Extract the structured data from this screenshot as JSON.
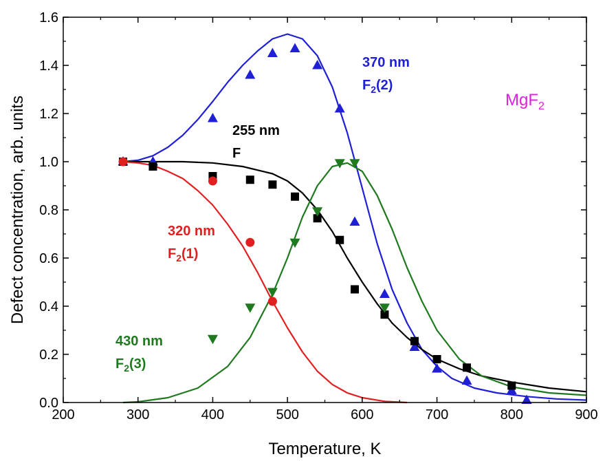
{
  "chart_data": {
    "type": "scatter",
    "title": "",
    "xlabel": "Temperature, K",
    "ylabel": "Defect concentration, arb. units",
    "xlim": [
      200,
      900
    ],
    "ylim": [
      0.0,
      1.6
    ],
    "xticks": [
      200,
      300,
      400,
      500,
      600,
      700,
      800,
      900
    ],
    "yticks": [
      0.0,
      0.2,
      0.4,
      0.6,
      0.8,
      1.0,
      1.2,
      1.4,
      1.6
    ],
    "xtick_labels": [
      "200",
      "300",
      "400",
      "500",
      "600",
      "700",
      "800",
      "900"
    ],
    "ytick_labels": [
      "0.0",
      "0.2",
      "0.4",
      "0.6",
      "0.8",
      "1.0",
      "1.2",
      "1.4",
      "1.6"
    ],
    "grid": false,
    "material_label": {
      "base": "MgF",
      "sub": "2",
      "color": "#e020e0"
    },
    "series": [
      {
        "id": "F2_2",
        "marker": "triangle-up",
        "color": "#1f1fd6",
        "points": [
          [
            280,
            1.0
          ],
          [
            320,
            1.0
          ],
          [
            400,
            1.18
          ],
          [
            450,
            1.36
          ],
          [
            480,
            1.45
          ],
          [
            510,
            1.47
          ],
          [
            540,
            1.4
          ],
          [
            570,
            1.22
          ],
          [
            590,
            0.75
          ],
          [
            630,
            0.45
          ],
          [
            670,
            0.23
          ],
          [
            700,
            0.14
          ],
          [
            740,
            0.09
          ],
          [
            800,
            0.05
          ],
          [
            820,
            0.01
          ]
        ],
        "fit": [
          [
            280,
            1.0
          ],
          [
            300,
            1.006
          ],
          [
            320,
            1.025
          ],
          [
            340,
            1.06
          ],
          [
            360,
            1.11
          ],
          [
            380,
            1.175
          ],
          [
            400,
            1.25
          ],
          [
            420,
            1.33
          ],
          [
            440,
            1.4
          ],
          [
            460,
            1.46
          ],
          [
            480,
            1.51
          ],
          [
            500,
            1.53
          ],
          [
            520,
            1.51
          ],
          [
            540,
            1.44
          ],
          [
            560,
            1.31
          ],
          [
            580,
            1.12
          ],
          [
            600,
            0.89
          ],
          [
            620,
            0.66
          ],
          [
            640,
            0.47
          ],
          [
            660,
            0.33
          ],
          [
            680,
            0.22
          ],
          [
            700,
            0.15
          ],
          [
            720,
            0.1
          ],
          [
            750,
            0.06
          ],
          [
            780,
            0.04
          ],
          [
            820,
            0.025
          ],
          [
            860,
            0.015
          ],
          [
            900,
            0.01
          ]
        ],
        "label_lines": [
          {
            "base": "370 nm",
            "sub": ""
          },
          {
            "base": "F",
            "sub": "2",
            "tail": "(2)"
          }
        ]
      },
      {
        "id": "F",
        "marker": "square",
        "color": "#000000",
        "points": [
          [
            280,
            1.0
          ],
          [
            320,
            0.98
          ],
          [
            400,
            0.94
          ],
          [
            450,
            0.925
          ],
          [
            480,
            0.905
          ],
          [
            510,
            0.855
          ],
          [
            540,
            0.765
          ],
          [
            570,
            0.675
          ],
          [
            590,
            0.47
          ],
          [
            630,
            0.365
          ],
          [
            670,
            0.255
          ],
          [
            700,
            0.18
          ],
          [
            740,
            0.145
          ],
          [
            800,
            0.07
          ]
        ],
        "fit": [
          [
            280,
            1.0
          ],
          [
            320,
            1.0
          ],
          [
            360,
            1.0
          ],
          [
            400,
            0.995
          ],
          [
            440,
            0.98
          ],
          [
            480,
            0.95
          ],
          [
            500,
            0.92
          ],
          [
            520,
            0.87
          ],
          [
            540,
            0.8
          ],
          [
            560,
            0.71
          ],
          [
            580,
            0.6
          ],
          [
            600,
            0.5
          ],
          [
            620,
            0.41
          ],
          [
            640,
            0.33
          ],
          [
            660,
            0.27
          ],
          [
            680,
            0.22
          ],
          [
            700,
            0.18
          ],
          [
            730,
            0.14
          ],
          [
            760,
            0.11
          ],
          [
            800,
            0.085
          ],
          [
            850,
            0.06
          ],
          [
            900,
            0.045
          ]
        ],
        "label_lines": [
          {
            "base": "255 nm",
            "sub": ""
          },
          {
            "base": "F",
            "sub": ""
          }
        ]
      },
      {
        "id": "F2_1",
        "marker": "circle",
        "color": "#e02020",
        "points": [
          [
            280,
            1.0
          ],
          [
            400,
            0.92
          ],
          [
            450,
            0.665
          ],
          [
            480,
            0.42
          ]
        ],
        "fit": [
          [
            280,
            1.0
          ],
          [
            300,
            0.995
          ],
          [
            320,
            0.985
          ],
          [
            340,
            0.96
          ],
          [
            360,
            0.93
          ],
          [
            380,
            0.88
          ],
          [
            400,
            0.82
          ],
          [
            420,
            0.74
          ],
          [
            440,
            0.65
          ],
          [
            460,
            0.54
          ],
          [
            480,
            0.42
          ],
          [
            500,
            0.31
          ],
          [
            520,
            0.21
          ],
          [
            540,
            0.13
          ],
          [
            560,
            0.075
          ],
          [
            580,
            0.04
          ],
          [
            600,
            0.02
          ],
          [
            630,
            0.005
          ],
          [
            660,
            0.0
          ]
        ],
        "label_lines": [
          {
            "base": "320 nm",
            "sub": ""
          },
          {
            "base": "F",
            "sub": "2",
            "tail": "(1)"
          }
        ]
      },
      {
        "id": "F2_3",
        "marker": "triangle-down",
        "color": "#1f7a1f",
        "points": [
          [
            400,
            0.265
          ],
          [
            450,
            0.395
          ],
          [
            480,
            0.46
          ],
          [
            510,
            0.665
          ],
          [
            540,
            0.795
          ],
          [
            570,
            0.995
          ],
          [
            590,
            0.995
          ],
          [
            630,
            0.395
          ]
        ],
        "fit": [
          [
            280,
            0.0
          ],
          [
            300,
            0.003
          ],
          [
            340,
            0.02
          ],
          [
            380,
            0.06
          ],
          [
            420,
            0.15
          ],
          [
            450,
            0.27
          ],
          [
            480,
            0.45
          ],
          [
            500,
            0.6
          ],
          [
            520,
            0.77
          ],
          [
            540,
            0.9
          ],
          [
            560,
            0.98
          ],
          [
            580,
            0.995
          ],
          [
            600,
            0.96
          ],
          [
            620,
            0.86
          ],
          [
            640,
            0.72
          ],
          [
            660,
            0.56
          ],
          [
            680,
            0.42
          ],
          [
            700,
            0.3
          ],
          [
            730,
            0.18
          ],
          [
            760,
            0.11
          ],
          [
            800,
            0.065
          ],
          [
            850,
            0.04
          ],
          [
            900,
            0.03
          ]
        ],
        "label_lines": [
          {
            "base": "430 nm",
            "sub": ""
          },
          {
            "base": "F",
            "sub": "2",
            "tail": "(3)"
          }
        ]
      }
    ]
  }
}
